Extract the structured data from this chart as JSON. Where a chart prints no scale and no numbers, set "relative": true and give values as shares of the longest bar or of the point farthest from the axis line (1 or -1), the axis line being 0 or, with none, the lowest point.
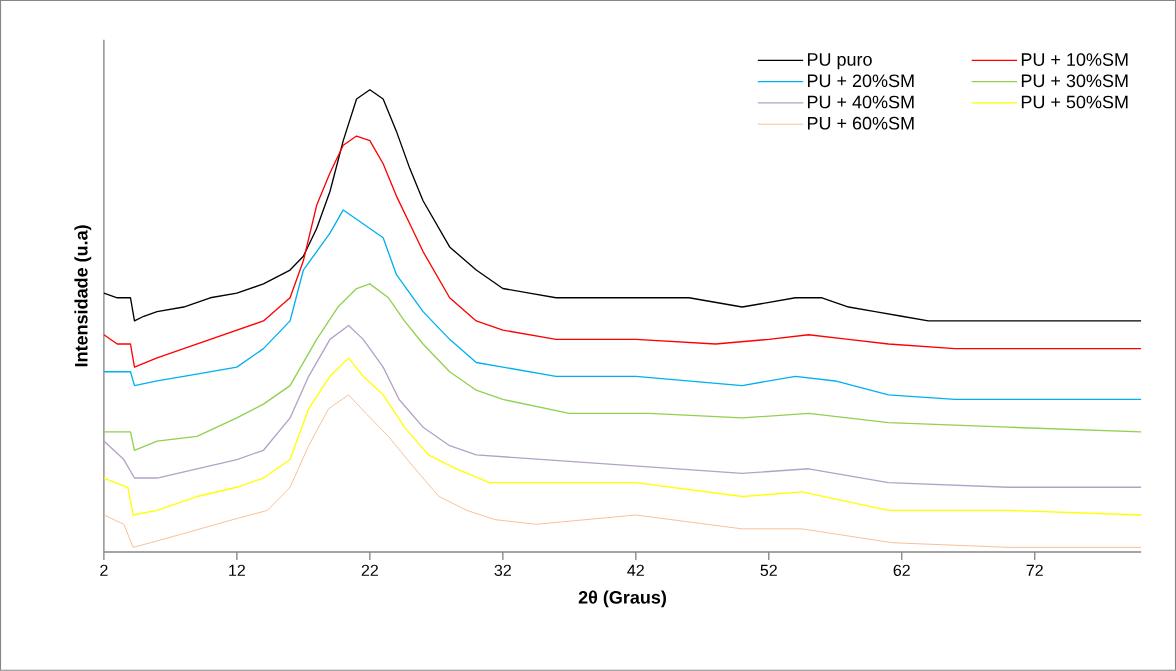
{
  "chart_data": {
    "type": "line",
    "xlabel": "2θ (Graus)",
    "ylabel": "Intensidade (u.a)",
    "relative": true,
    "xlim": [
      2,
      80
    ],
    "xticks": [
      2,
      12,
      22,
      32,
      42,
      52,
      62,
      72
    ],
    "legend": "top right",
    "series": [
      {
        "name": "PU puro",
        "color": "#000000",
        "x": [
          2,
          3,
          4,
          4.3,
          5,
          6,
          8,
          10,
          12,
          14,
          16,
          17,
          18,
          19,
          20,
          21,
          22,
          23,
          24,
          25,
          26,
          28,
          30,
          32,
          34,
          36,
          40,
          42,
          46,
          50,
          52,
          54,
          56,
          58,
          60,
          62,
          64,
          68,
          72,
          76,
          80
        ],
        "values": [
          0.56,
          0.55,
          0.55,
          0.5,
          0.51,
          0.52,
          0.53,
          0.55,
          0.56,
          0.58,
          0.61,
          0.64,
          0.7,
          0.78,
          0.89,
          0.98,
          1.0,
          0.98,
          0.91,
          0.83,
          0.76,
          0.66,
          0.61,
          0.57,
          0.56,
          0.55,
          0.55,
          0.55,
          0.55,
          0.53,
          0.54,
          0.55,
          0.55,
          0.53,
          0.52,
          0.51,
          0.5,
          0.5,
          0.5,
          0.5,
          0.5
        ]
      },
      {
        "name": "PU + 10%SM",
        "color": "#ff0000",
        "x": [
          2,
          3,
          4,
          4.3,
          6,
          8,
          10,
          12,
          14,
          16,
          17,
          18,
          19,
          20,
          21,
          22,
          23,
          24,
          25,
          26,
          28,
          30,
          32,
          36,
          42,
          48,
          52,
          55,
          58,
          61,
          66,
          72,
          80
        ],
        "values": [
          0.47,
          0.45,
          0.45,
          0.4,
          0.42,
          0.44,
          0.46,
          0.48,
          0.5,
          0.55,
          0.63,
          0.75,
          0.82,
          0.88,
          0.9,
          0.89,
          0.84,
          0.77,
          0.71,
          0.65,
          0.55,
          0.5,
          0.48,
          0.46,
          0.46,
          0.45,
          0.46,
          0.47,
          0.46,
          0.45,
          0.44,
          0.44,
          0.44
        ]
      },
      {
        "name": "PU + 20%SM",
        "color": "#00b0f0",
        "x": [
          2,
          4,
          4.3,
          6,
          8,
          10,
          12,
          14,
          16,
          17,
          18,
          19,
          20,
          21,
          22,
          23,
          24,
          26,
          28,
          30,
          32,
          36,
          42,
          50,
          54,
          57,
          61,
          66,
          72,
          80
        ],
        "values": [
          0.39,
          0.39,
          0.36,
          0.37,
          0.38,
          0.39,
          0.4,
          0.44,
          0.5,
          0.61,
          0.65,
          0.69,
          0.74,
          0.72,
          0.7,
          0.68,
          0.6,
          0.52,
          0.46,
          0.41,
          0.4,
          0.38,
          0.38,
          0.36,
          0.38,
          0.37,
          0.34,
          0.33,
          0.33,
          0.33
        ]
      },
      {
        "name": "PU + 30%SM",
        "color": "#92d050",
        "x": [
          2,
          4,
          4.3,
          6,
          9,
          12,
          14,
          16,
          18,
          19.6,
          21,
          22,
          23.4,
          24.6,
          26,
          28,
          30,
          32,
          37,
          43,
          50,
          55,
          61,
          70,
          80
        ],
        "values": [
          0.26,
          0.26,
          0.22,
          0.24,
          0.25,
          0.29,
          0.32,
          0.36,
          0.46,
          0.53,
          0.57,
          0.58,
          0.55,
          0.5,
          0.45,
          0.39,
          0.35,
          0.33,
          0.3,
          0.3,
          0.29,
          0.3,
          0.28,
          0.27,
          0.26
        ]
      },
      {
        "name": "PU + 40%SM",
        "color": "#b3a2c7",
        "x": [
          2,
          3.5,
          4.3,
          6,
          9,
          12,
          14,
          16,
          17.4,
          19,
          20.4,
          21.5,
          23,
          24.2,
          26,
          28,
          30,
          40,
          50,
          55,
          61,
          70,
          80
        ],
        "values": [
          0.24,
          0.2,
          0.16,
          0.16,
          0.18,
          0.2,
          0.22,
          0.29,
          0.38,
          0.46,
          0.49,
          0.46,
          0.4,
          0.33,
          0.27,
          0.23,
          0.21,
          0.19,
          0.17,
          0.18,
          0.15,
          0.14,
          0.14
        ]
      },
      {
        "name": "PU + 50%SM",
        "color": "#ffff00",
        "x": [
          2,
          3.8,
          4.2,
          6,
          9,
          12,
          14,
          16,
          17.4,
          19,
          20.4,
          21.5,
          23,
          24.6,
          26.4,
          28.5,
          31,
          42,
          50,
          54.5,
          61,
          70,
          80
        ],
        "values": [
          0.16,
          0.14,
          0.08,
          0.09,
          0.12,
          0.14,
          0.16,
          0.2,
          0.31,
          0.38,
          0.42,
          0.38,
          0.34,
          0.27,
          0.21,
          0.18,
          0.15,
          0.15,
          0.12,
          0.13,
          0.09,
          0.09,
          0.08
        ]
      },
      {
        "name": "PU + 60%SM",
        "color": "#f4b183",
        "x": [
          2,
          3.5,
          4.2,
          5.5,
          8,
          11.7,
          14.3,
          16,
          17.4,
          18.9,
          20.4,
          21.7,
          23.4,
          25.1,
          27.2,
          29.3,
          31.4,
          34.5,
          42,
          50,
          54.5,
          61.3,
          70,
          80
        ],
        "values": [
          0.08,
          0.06,
          0.01,
          0.02,
          0.04,
          0.07,
          0.09,
          0.14,
          0.23,
          0.31,
          0.34,
          0.3,
          0.25,
          0.19,
          0.12,
          0.09,
          0.07,
          0.06,
          0.08,
          0.05,
          0.05,
          0.02,
          0.01,
          0.01
        ]
      }
    ]
  }
}
